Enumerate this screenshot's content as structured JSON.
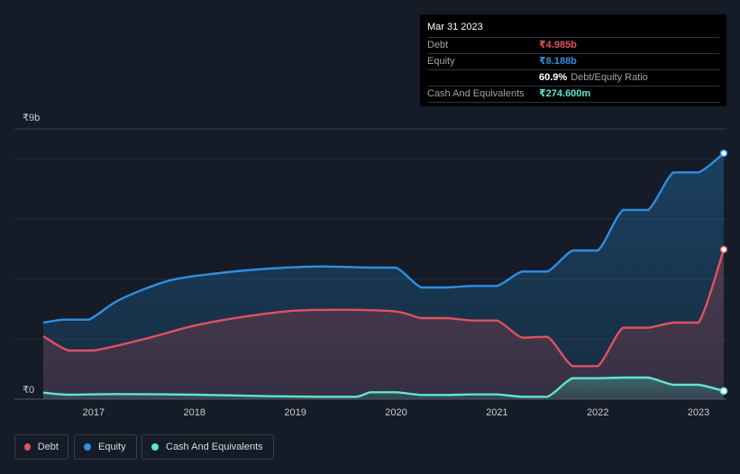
{
  "tooltip": {
    "date": "Mar 31 2023",
    "debt_label": "Debt",
    "debt_value": "₹4.985b",
    "equity_label": "Equity",
    "equity_value": "₹8.188b",
    "ratio_value": "60.9%",
    "ratio_label": "Debt/Equity Ratio",
    "cash_label": "Cash And Equivalents",
    "cash_value": "₹274.600m"
  },
  "legend": {
    "debt": "Debt",
    "equity": "Equity",
    "cash": "Cash And Equivalents"
  },
  "colors": {
    "debt": "#e2515f",
    "equity": "#2f8fe0",
    "cash": "#5ce6cf"
  },
  "chart_data": {
    "type": "area",
    "y_max_label": "₹9b",
    "y_min_label": "₹0",
    "ylim": [
      0,
      9
    ],
    "xlim": [
      2016.5,
      2023.25
    ],
    "x_ticks": [
      "2017",
      "2018",
      "2019",
      "2020",
      "2021",
      "2022",
      "2023"
    ],
    "series": [
      {
        "name": "Equity",
        "points": [
          [
            2016.5,
            2.55
          ],
          [
            2016.7,
            2.65
          ],
          [
            2016.95,
            2.65
          ],
          [
            2017.25,
            3.3
          ],
          [
            2017.75,
            3.95
          ],
          [
            2018.25,
            4.2
          ],
          [
            2018.75,
            4.35
          ],
          [
            2019.25,
            4.42
          ],
          [
            2019.75,
            4.38
          ],
          [
            2020.0,
            4.38
          ],
          [
            2020.25,
            3.72
          ],
          [
            2020.5,
            3.72
          ],
          [
            2020.75,
            3.77
          ],
          [
            2021.0,
            3.77
          ],
          [
            2021.25,
            4.25
          ],
          [
            2021.5,
            4.25
          ],
          [
            2021.75,
            4.95
          ],
          [
            2022.0,
            4.95
          ],
          [
            2022.25,
            6.3
          ],
          [
            2022.5,
            6.3
          ],
          [
            2022.75,
            7.55
          ],
          [
            2023.0,
            7.55
          ],
          [
            2023.25,
            8.188
          ]
        ]
      },
      {
        "name": "Debt",
        "points": [
          [
            2016.5,
            2.1
          ],
          [
            2016.75,
            1.62
          ],
          [
            2017.0,
            1.62
          ],
          [
            2017.5,
            2.0
          ],
          [
            2018.0,
            2.45
          ],
          [
            2018.5,
            2.75
          ],
          [
            2019.0,
            2.95
          ],
          [
            2019.5,
            2.98
          ],
          [
            2020.0,
            2.92
          ],
          [
            2020.25,
            2.7
          ],
          [
            2020.5,
            2.7
          ],
          [
            2020.75,
            2.62
          ],
          [
            2021.0,
            2.62
          ],
          [
            2021.25,
            2.05
          ],
          [
            2021.5,
            2.08
          ],
          [
            2021.75,
            1.1
          ],
          [
            2022.0,
            1.1
          ],
          [
            2022.25,
            2.38
          ],
          [
            2022.5,
            2.38
          ],
          [
            2022.75,
            2.55
          ],
          [
            2023.0,
            2.55
          ],
          [
            2023.25,
            4.985
          ]
        ]
      },
      {
        "name": "Cash And Equivalents",
        "points": [
          [
            2016.5,
            0.22
          ],
          [
            2016.75,
            0.15
          ],
          [
            2017.25,
            0.17
          ],
          [
            2018.0,
            0.15
          ],
          [
            2018.75,
            0.1
          ],
          [
            2019.25,
            0.08
          ],
          [
            2019.6,
            0.08
          ],
          [
            2019.75,
            0.23
          ],
          [
            2020.0,
            0.23
          ],
          [
            2020.25,
            0.14
          ],
          [
            2020.5,
            0.14
          ],
          [
            2020.75,
            0.16
          ],
          [
            2021.0,
            0.16
          ],
          [
            2021.25,
            0.08
          ],
          [
            2021.5,
            0.08
          ],
          [
            2021.75,
            0.7
          ],
          [
            2022.0,
            0.7
          ],
          [
            2022.25,
            0.72
          ],
          [
            2022.5,
            0.72
          ],
          [
            2022.75,
            0.48
          ],
          [
            2023.0,
            0.48
          ],
          [
            2023.25,
            0.2746
          ]
        ]
      }
    ]
  }
}
